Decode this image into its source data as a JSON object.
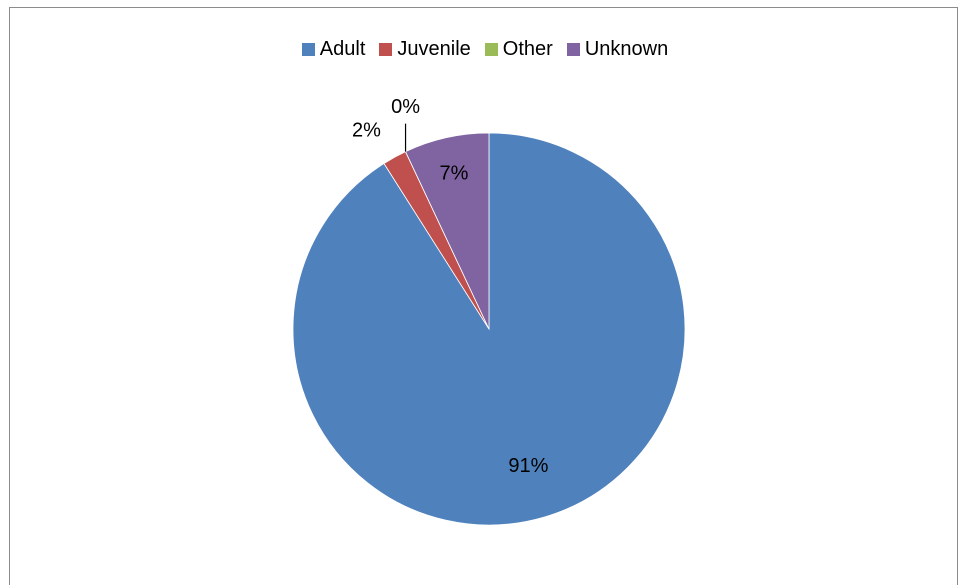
{
  "chart_data": {
    "type": "pie",
    "categories": [
      "Adult",
      "Juvenile",
      "Other",
      "Unknown"
    ],
    "values": [
      91,
      2,
      0,
      7
    ],
    "labels": [
      "91%",
      "2%",
      "0%",
      "7%"
    ],
    "colors": [
      "#4F81BD",
      "#C0504D",
      "#9BBB59",
      "#8064A2"
    ],
    "legend_position": "top",
    "title": ""
  }
}
